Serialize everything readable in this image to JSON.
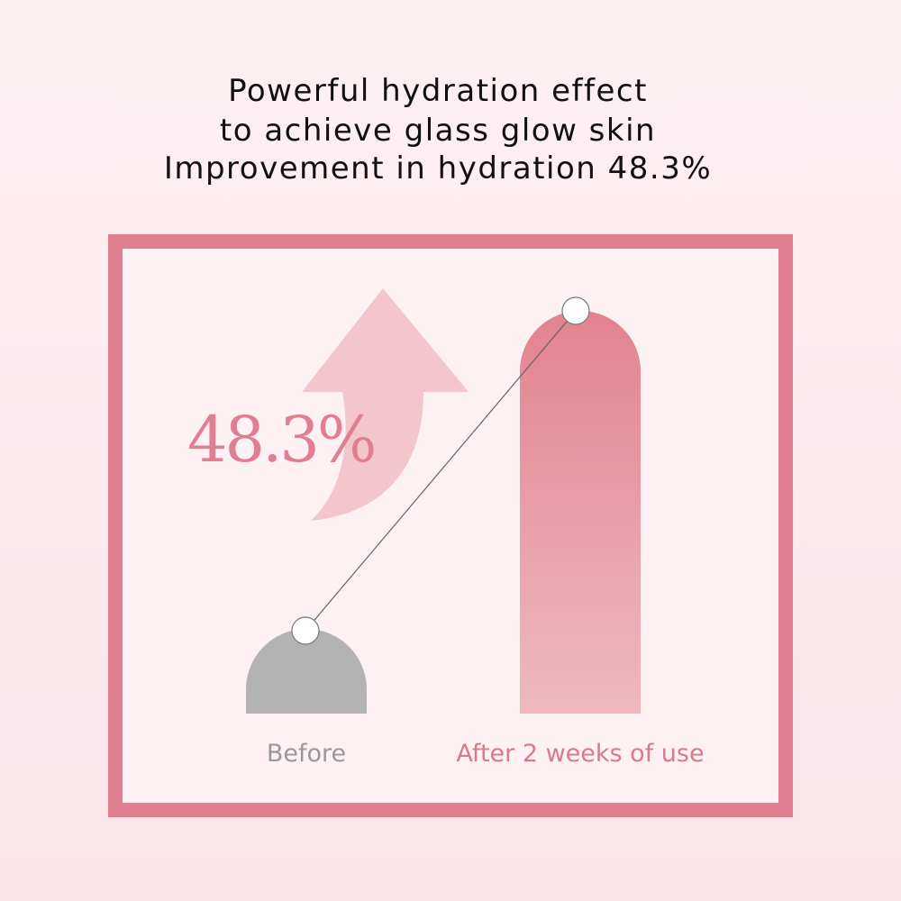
{
  "title": [
    "Powerful hydration effect",
    "to achieve glass glow skin",
    "Improvement in hydration 48.3%"
  ],
  "highlight": "48.3%",
  "labels": [
    "Before",
    "After 2 weeks of use"
  ]
}
